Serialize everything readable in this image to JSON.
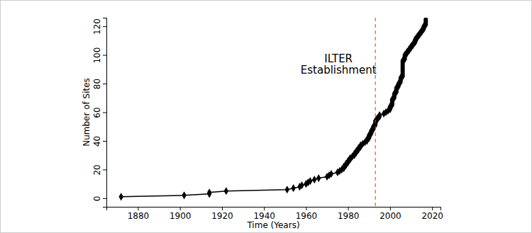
{
  "chart_data": {
    "type": "line",
    "x_label": "Time (Years)",
    "y_label": "Number of Sites",
    "series": [
      {
        "name": "Number of Sites",
        "color": "#000000",
        "marker": "diamond",
        "line_style": "solid",
        "x": [
          1872,
          1902,
          1914,
          1914,
          1922,
          1951,
          1954,
          1957,
          1958,
          1960,
          1961,
          1962,
          1964,
          1966,
          1970,
          1971,
          1972,
          1975,
          1976,
          1977,
          1978,
          1978,
          1979,
          1979,
          1980,
          1980,
          1981,
          1981,
          1982,
          1983,
          1983,
          1984,
          1984,
          1985,
          1985,
          1986,
          1986,
          1987,
          1988,
          1989,
          1989,
          1990,
          1990,
          1990,
          1991,
          1991,
          1991,
          1992,
          1992,
          1992,
          1993,
          1993,
          1993,
          1993,
          1994,
          1994,
          1995,
          1995,
          1997,
          1998,
          1999,
          2000,
          2000,
          2000,
          2001,
          2001,
          2001,
          2001,
          2001,
          2002,
          2002,
          2002,
          2002,
          2003,
          2003,
          2003,
          2003,
          2004,
          2004,
          2004,
          2005,
          2005,
          2005,
          2005,
          2006,
          2006,
          2006,
          2006,
          2006,
          2006,
          2006,
          2006,
          2006,
          2006,
          2006,
          2006,
          2007,
          2007,
          2007,
          2007,
          2008,
          2008,
          2009,
          2009,
          2010,
          2010,
          2011,
          2011,
          2012,
          2012,
          2012,
          2013,
          2013,
          2014,
          2014,
          2015,
          2015,
          2016,
          2016,
          2016,
          2017,
          2017,
          2017,
          2017,
          2017
        ],
        "values": [
          1,
          2,
          3,
          4,
          5,
          6,
          7,
          8,
          9,
          10,
          11,
          12,
          13,
          14,
          15,
          16,
          17,
          18,
          19,
          20,
          21,
          22,
          23,
          24,
          25,
          26,
          27,
          28,
          29,
          30,
          31,
          32,
          33,
          34,
          35,
          36,
          37,
          38,
          39,
          40,
          41,
          42,
          43,
          44,
          45,
          46,
          47,
          48,
          49,
          50,
          51,
          52,
          53,
          54,
          55,
          56,
          57,
          58,
          59,
          60,
          61,
          62,
          63,
          64,
          65,
          66,
          67,
          68,
          69,
          70,
          71,
          72,
          73,
          74,
          75,
          76,
          77,
          78,
          79,
          80,
          81,
          82,
          83,
          84,
          85,
          86,
          87,
          88,
          89,
          90,
          91,
          92,
          93,
          94,
          95,
          96,
          97,
          98,
          99,
          100,
          101,
          102,
          103,
          104,
          105,
          106,
          107,
          108,
          109,
          110,
          111,
          112,
          113,
          114,
          115,
          116,
          117,
          118,
          119,
          120,
          121,
          122,
          123,
          124,
          125
        ]
      }
    ],
    "annotations": [
      {
        "lines": [
          "ILTER",
          "Establishment"
        ],
        "x": 1993,
        "color": "#e0352b",
        "line_style": "dashed"
      }
    ],
    "xlim": [
      1865,
      2024
    ],
    "xticks": [
      1880,
      1900,
      1920,
      1940,
      1960,
      1980,
      2000,
      2020
    ],
    "ylim": [
      -6,
      126
    ],
    "yticks": [
      0,
      20,
      40,
      60,
      80,
      100,
      120
    ],
    "grid": false
  }
}
